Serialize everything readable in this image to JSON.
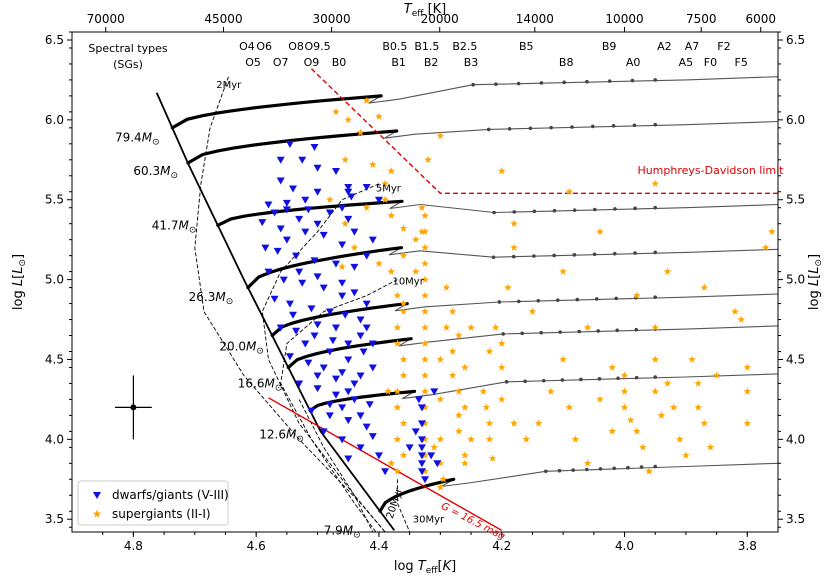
{
  "chart_data": {
    "type": "scatter",
    "title": "",
    "xlabel": "log T_eff[K]",
    "xlabel_top": "T_eff [K]",
    "ylabel": "log L[L_⊙]",
    "xlim": [
      4.9,
      3.75
    ],
    "ylim": [
      3.42,
      6.55
    ],
    "x_ticks": [
      {
        "v": 4.8,
        "label": "4.8"
      },
      {
        "v": 4.6,
        "label": "4.6"
      },
      {
        "v": 4.4,
        "label": "4.4"
      },
      {
        "v": 4.2,
        "label": "4.2"
      },
      {
        "v": 4.0,
        "label": "4.0"
      },
      {
        "v": 3.8,
        "label": "3.8"
      }
    ],
    "y_ticks": [
      {
        "v": 3.5,
        "label": "3.5"
      },
      {
        "v": 4.0,
        "label": "4.0"
      },
      {
        "v": 4.5,
        "label": "4.5"
      },
      {
        "v": 5.0,
        "label": "5.0"
      },
      {
        "v": 5.5,
        "label": "5.5"
      },
      {
        "v": 6.0,
        "label": "6.0"
      },
      {
        "v": 6.5,
        "label": "6.5"
      }
    ],
    "top_ticks": [
      {
        "teff": 70000,
        "label": "70000"
      },
      {
        "teff": 45000,
        "label": "45000"
      },
      {
        "teff": 30000,
        "label": "30000"
      },
      {
        "teff": 20000,
        "label": "20000"
      },
      {
        "teff": 14000,
        "label": "14000"
      },
      {
        "teff": 10000,
        "label": "10000"
      },
      {
        "teff": 7500,
        "label": "7500"
      },
      {
        "teff": 6000,
        "label": "6000"
      }
    ],
    "spectral_types_header": [
      "Spectral types",
      "(SGs)"
    ],
    "spectral_types_row1": [
      {
        "label": "O4",
        "x": 4.615
      },
      {
        "label": "O6",
        "x": 4.587
      },
      {
        "label": "O8",
        "x": 4.535
      },
      {
        "label": "O9.5",
        "x": 4.5
      },
      {
        "label": "B0.5",
        "x": 4.374
      },
      {
        "label": "B1.5",
        "x": 4.322
      },
      {
        "label": "B2.5",
        "x": 4.26
      },
      {
        "label": "B5",
        "x": 4.16
      },
      {
        "label": "B9",
        "x": 4.025
      },
      {
        "label": "A2",
        "x": 3.935
      },
      {
        "label": "A7",
        "x": 3.89
      },
      {
        "label": "F2",
        "x": 3.838
      }
    ],
    "spectral_types_row2": [
      {
        "label": "O5",
        "x": 4.605
      },
      {
        "label": "O7",
        "x": 4.56
      },
      {
        "label": "O9",
        "x": 4.51
      },
      {
        "label": "B0",
        "x": 4.465
      },
      {
        "label": "B1",
        "x": 4.368
      },
      {
        "label": "B2",
        "x": 4.315
      },
      {
        "label": "B3",
        "x": 4.25
      },
      {
        "label": "B8",
        "x": 4.095
      },
      {
        "label": "A0",
        "x": 3.986
      },
      {
        "label": "A5",
        "x": 3.9
      },
      {
        "label": "F0",
        "x": 3.86
      },
      {
        "label": "F5",
        "x": 3.81
      }
    ],
    "zams": [
      [
        4.762,
        6.17
      ],
      [
        4.71,
        5.72
      ],
      [
        4.62,
        5.0
      ],
      [
        4.545,
        4.43
      ],
      [
        4.495,
        4.05
      ],
      [
        4.375,
        3.43
      ]
    ],
    "tracks": [
      {
        "mass_label": "79.4M",
        "label_x": 4.83,
        "label_y": 5.89,
        "y0": 5.95,
        "span": 0.34,
        "sl": 0.2,
        "lum_end": 6.27
      },
      {
        "mass_label": "60.3M",
        "label_x": 4.8,
        "label_y": 5.68,
        "y0": 5.73,
        "span": 0.34,
        "sl": 0.2,
        "lum_end": 5.99
      },
      {
        "mass_label": "41.7M",
        "label_x": 4.77,
        "label_y": 5.34,
        "y0": 5.34,
        "span": 0.3,
        "sl": 0.15,
        "lum_end": 5.47
      },
      {
        "mass_label": "26.3M",
        "label_x": 4.71,
        "label_y": 4.89,
        "y0": 4.95,
        "span": 0.25,
        "sl": 0.25,
        "lum_end": 5.19
      },
      {
        "mass_label": "20.0M",
        "label_x": 4.66,
        "label_y": 4.58,
        "y0": 4.65,
        "span": 0.22,
        "sl": 0.2,
        "lum_end": 4.91
      },
      {
        "mass_label": "16.6M",
        "label_x": 4.63,
        "label_y": 4.35,
        "y0": 4.45,
        "span": 0.2,
        "sl": 0.18,
        "lum_end": 4.71
      },
      {
        "mass_label": "12.6M",
        "label_x": 4.595,
        "label_y": 4.03,
        "y0": 4.18,
        "span": 0.17,
        "sl": 0.12,
        "lum_end": 4.41
      },
      {
        "mass_label": "7.9M",
        "label_x": 4.49,
        "label_y": 3.43,
        "y0": 3.55,
        "span": 0.12,
        "sl": 0.2,
        "lum_end": 3.85
      }
    ],
    "isochrones": [
      {
        "label": "2Myr",
        "x": 4.665,
        "y": 6.2,
        "pts": [
          [
            4.645,
            6.27
          ],
          [
            4.675,
            5.95
          ],
          [
            4.69,
            5.6
          ],
          [
            4.7,
            5.2
          ],
          [
            4.685,
            4.8
          ],
          [
            4.62,
            4.4
          ],
          [
            4.53,
            4.0
          ],
          [
            4.43,
            3.6
          ],
          [
            4.39,
            3.42
          ]
        ]
      },
      {
        "label": "5Myr",
        "x": 4.405,
        "y": 5.55,
        "pts": [
          [
            4.4,
            5.6
          ],
          [
            4.46,
            5.5
          ],
          [
            4.5,
            5.3
          ],
          [
            4.56,
            5.05
          ],
          [
            4.59,
            4.8
          ],
          [
            4.58,
            4.5
          ],
          [
            4.53,
            4.1
          ],
          [
            4.44,
            3.65
          ],
          [
            4.39,
            3.42
          ]
        ]
      },
      {
        "label": "10Myr",
        "x": 4.378,
        "y": 4.97,
        "pts": [
          [
            4.37,
            5.0
          ],
          [
            4.42,
            4.9
          ],
          [
            4.49,
            4.8
          ],
          [
            4.55,
            4.6
          ],
          [
            4.56,
            4.35
          ],
          [
            4.51,
            4.0
          ],
          [
            4.44,
            3.6
          ],
          [
            4.405,
            3.42
          ]
        ]
      },
      {
        "label": "20Myr",
        "x": 4.378,
        "y": 3.5,
        "pts": [
          [
            4.53,
            4.25
          ],
          [
            4.49,
            3.95
          ],
          [
            4.44,
            3.65
          ],
          [
            4.41,
            3.42
          ]
        ]
      },
      {
        "label": "30Myr",
        "x": 4.345,
        "y": 3.48,
        "pts": [
          [
            4.37,
            3.75
          ],
          [
            4.37,
            3.6
          ],
          [
            4.35,
            3.42
          ]
        ]
      }
    ],
    "hd_limit": {
      "label": "Humphreys-Davidson limit",
      "pts": [
        [
          4.51,
          6.32
        ],
        [
          4.3,
          5.54
        ],
        [
          3.75,
          5.54
        ]
      ]
    },
    "g_limit": {
      "label": "G = 16.5 mag",
      "pts": [
        [
          4.58,
          4.26
        ],
        [
          4.2,
          3.43
        ]
      ]
    },
    "error_bar": {
      "x": 4.8,
      "y": 4.2,
      "xerr": 0.03,
      "yerr": 0.2
    },
    "series": [
      {
        "name": "dwarfs/giants (V-III)",
        "color": "#1010e0",
        "marker": "triangle-down"
      },
      {
        "name": "supergiants (II-I)",
        "color": "#ffa500",
        "marker": "star"
      }
    ],
    "dwarfs": [
      [
        4.505,
        5.83
      ],
      [
        4.545,
        5.85
      ],
      [
        4.56,
        5.75
      ],
      [
        4.525,
        5.75
      ],
      [
        4.5,
        5.7
      ],
      [
        4.47,
        5.68
      ],
      [
        4.45,
        5.58
      ],
      [
        4.56,
        5.62
      ],
      [
        4.54,
        5.57
      ],
      [
        4.5,
        5.55
      ],
      [
        4.445,
        5.52
      ],
      [
        4.42,
        5.58
      ],
      [
        4.4,
        5.5
      ],
      [
        4.58,
        5.47
      ],
      [
        4.55,
        5.44
      ],
      [
        4.515,
        5.44
      ],
      [
        4.48,
        5.42
      ],
      [
        4.45,
        5.38
      ],
      [
        4.59,
        5.36
      ],
      [
        4.56,
        5.32
      ],
      [
        4.52,
        5.3
      ],
      [
        4.49,
        5.28
      ],
      [
        4.44,
        5.3
      ],
      [
        4.41,
        5.25
      ],
      [
        4.585,
        5.2
      ],
      [
        4.565,
        5.18
      ],
      [
        4.535,
        5.15
      ],
      [
        4.505,
        5.12
      ],
      [
        4.47,
        5.1
      ],
      [
        4.44,
        5.08
      ],
      [
        4.42,
        5.15
      ],
      [
        4.58,
        5.05
      ],
      [
        4.555,
        5.0
      ],
      [
        4.525,
        4.98
      ],
      [
        4.49,
        4.95
      ],
      [
        4.46,
        4.98
      ],
      [
        4.44,
        4.92
      ],
      [
        4.42,
        4.85
      ],
      [
        4.57,
        4.88
      ],
      [
        4.545,
        4.85
      ],
      [
        4.51,
        4.82
      ],
      [
        4.48,
        4.8
      ],
      [
        4.455,
        4.78
      ],
      [
        4.43,
        4.75
      ],
      [
        4.56,
        4.7
      ],
      [
        4.535,
        4.68
      ],
      [
        4.505,
        4.65
      ],
      [
        4.475,
        4.62
      ],
      [
        4.45,
        4.6
      ],
      [
        4.425,
        4.55
      ],
      [
        4.545,
        4.52
      ],
      [
        4.515,
        4.48
      ],
      [
        4.49,
        4.45
      ],
      [
        4.46,
        4.42
      ],
      [
        4.43,
        4.4
      ],
      [
        4.41,
        4.45
      ],
      [
        4.53,
        4.35
      ],
      [
        4.5,
        4.32
      ],
      [
        4.47,
        4.28
      ],
      [
        4.44,
        4.25
      ],
      [
        4.415,
        4.22
      ],
      [
        4.51,
        4.18
      ],
      [
        4.48,
        4.15
      ],
      [
        4.45,
        4.12
      ],
      [
        4.42,
        4.08
      ],
      [
        4.49,
        4.05
      ],
      [
        4.46,
        4.0
      ],
      [
        4.43,
        3.95
      ],
      [
        4.41,
        4.02
      ],
      [
        4.45,
        3.88
      ],
      [
        4.4,
        3.9
      ],
      [
        4.39,
        3.8
      ],
      [
        4.33,
        4.2
      ],
      [
        4.33,
        4.1
      ],
      [
        4.33,
        4.0
      ],
      [
        4.33,
        3.95
      ],
      [
        4.33,
        3.9
      ],
      [
        4.33,
        3.85
      ],
      [
        4.33,
        3.8
      ],
      [
        4.325,
        3.75
      ],
      [
        4.335,
        4.25
      ],
      [
        4.34,
        4.05
      ],
      [
        4.35,
        3.95
      ],
      [
        4.315,
        3.9
      ],
      [
        4.31,
        4.3
      ],
      [
        4.305,
        3.85
      ],
      [
        4.45,
        5.55
      ],
      [
        4.52,
        5.5
      ],
      [
        4.55,
        5.48
      ],
      [
        4.46,
        5.45
      ],
      [
        4.53,
        5.38
      ],
      [
        4.57,
        5.42
      ],
      [
        4.5,
        5.35
      ],
      [
        4.46,
        5.22
      ],
      [
        4.55,
        5.25
      ],
      [
        4.53,
        5.05
      ],
      [
        4.5,
        5.02
      ],
      [
        4.46,
        4.9
      ],
      [
        4.54,
        4.78
      ],
      [
        4.5,
        4.72
      ],
      [
        4.47,
        4.7
      ],
      [
        4.52,
        4.6
      ],
      [
        4.48,
        4.55
      ],
      [
        4.45,
        4.5
      ],
      [
        4.5,
        4.4
      ],
      [
        4.47,
        4.38
      ],
      [
        4.45,
        4.3
      ],
      [
        4.48,
        4.22
      ],
      [
        4.46,
        4.2
      ],
      [
        4.43,
        4.15
      ],
      [
        4.44,
        4.35
      ],
      [
        4.43,
        4.65
      ],
      [
        4.42,
        4.7
      ],
      [
        4.41,
        4.6
      ]
    ],
    "supergiants": [
      [
        4.47,
        6.05
      ],
      [
        4.43,
        5.92
      ],
      [
        4.42,
        6.12
      ],
      [
        4.455,
        5.75
      ],
      [
        4.41,
        5.72
      ],
      [
        4.38,
        5.68
      ],
      [
        4.48,
        5.5
      ],
      [
        4.455,
        5.35
      ],
      [
        4.42,
        5.45
      ],
      [
        4.39,
        5.5
      ],
      [
        4.38,
        5.4
      ],
      [
        4.36,
        5.32
      ],
      [
        4.34,
        5.25
      ],
      [
        4.4,
        5.1
      ],
      [
        4.38,
        5.05
      ],
      [
        4.37,
        4.9
      ],
      [
        4.36,
        4.85
      ],
      [
        4.37,
        4.6
      ],
      [
        4.36,
        4.5
      ],
      [
        4.385,
        4.3
      ],
      [
        4.37,
        4.2
      ],
      [
        4.36,
        4.1
      ],
      [
        4.37,
        4.0
      ],
      [
        4.36,
        3.9
      ],
      [
        4.38,
        3.85
      ],
      [
        4.37,
        3.8
      ],
      [
        4.325,
        5.4
      ],
      [
        4.325,
        5.3
      ],
      [
        4.325,
        5.2
      ],
      [
        4.325,
        5.1
      ],
      [
        4.325,
        5.0
      ],
      [
        4.325,
        4.9
      ],
      [
        4.325,
        4.8
      ],
      [
        4.325,
        4.7
      ],
      [
        4.325,
        4.6
      ],
      [
        4.325,
        4.5
      ],
      [
        4.325,
        4.4
      ],
      [
        4.325,
        4.3
      ],
      [
        4.325,
        4.2
      ],
      [
        4.325,
        4.1
      ],
      [
        4.325,
        4.0
      ],
      [
        4.325,
        3.9
      ],
      [
        4.325,
        3.8
      ],
      [
        4.31,
        3.95
      ],
      [
        4.3,
        3.85
      ],
      [
        4.295,
        3.75
      ],
      [
        4.3,
        3.7
      ],
      [
        4.3,
        4.5
      ],
      [
        4.28,
        4.4
      ],
      [
        4.27,
        4.3
      ],
      [
        4.26,
        4.2
      ],
      [
        4.27,
        4.05
      ],
      [
        4.26,
        3.9
      ],
      [
        4.26,
        3.85
      ],
      [
        4.29,
        4.7
      ],
      [
        4.28,
        4.8
      ],
      [
        4.23,
        4.3
      ],
      [
        4.225,
        4.2
      ],
      [
        4.22,
        4.1
      ],
      [
        4.22,
        4.0
      ],
      [
        4.215,
        3.88
      ],
      [
        4.18,
        5.35
      ],
      [
        4.18,
        5.2
      ],
      [
        4.19,
        4.95
      ],
      [
        4.2,
        4.6
      ],
      [
        4.2,
        4.45
      ],
      [
        4.2,
        4.25
      ],
      [
        4.18,
        4.1
      ],
      [
        4.16,
        4.0
      ],
      [
        4.14,
        4.1
      ],
      [
        4.12,
        4.3
      ],
      [
        4.1,
        4.5
      ],
      [
        4.09,
        4.2
      ],
      [
        4.08,
        4.0
      ],
      [
        4.06,
        3.85
      ],
      [
        4.04,
        4.25
      ],
      [
        4.02,
        4.05
      ],
      [
        4.0,
        4.4
      ],
      [
        4.0,
        4.3
      ],
      [
        4.0,
        4.2
      ],
      [
        3.99,
        4.12
      ],
      [
        3.98,
        4.05
      ],
      [
        3.97,
        3.95
      ],
      [
        3.96,
        3.8
      ],
      [
        3.95,
        4.7
      ],
      [
        3.95,
        4.5
      ],
      [
        3.95,
        4.3
      ],
      [
        3.94,
        4.15
      ],
      [
        3.93,
        4.35
      ],
      [
        3.92,
        4.2
      ],
      [
        3.91,
        4.0
      ],
      [
        3.9,
        3.9
      ],
      [
        3.89,
        4.5
      ],
      [
        3.88,
        4.35
      ],
      [
        3.88,
        4.2
      ],
      [
        3.87,
        4.1
      ],
      [
        3.86,
        3.95
      ],
      [
        3.85,
        4.4
      ],
      [
        3.82,
        4.8
      ],
      [
        3.81,
        4.75
      ],
      [
        3.8,
        4.45
      ],
      [
        3.8,
        4.3
      ],
      [
        3.8,
        4.1
      ],
      [
        3.77,
        5.2
      ],
      [
        3.76,
        5.3
      ],
      [
        4.02,
        4.45
      ],
      [
        4.06,
        4.7
      ],
      [
        4.1,
        5.05
      ],
      [
        4.15,
        4.8
      ],
      [
        3.98,
        4.9
      ],
      [
        3.93,
        5.05
      ],
      [
        3.87,
        4.95
      ],
      [
        4.04,
        5.3
      ],
      [
        3.95,
        5.6
      ],
      [
        4.09,
        5.55
      ],
      [
        4.2,
        5.68
      ],
      [
        4.34,
        5.05
      ],
      [
        4.33,
        5.45
      ],
      [
        4.29,
        4.95
      ],
      [
        4.27,
        4.65
      ],
      [
        4.25,
        4.7
      ],
      [
        4.33,
        5.3
      ],
      [
        4.37,
        4.3
      ],
      [
        4.36,
        4.4
      ],
      [
        4.37,
        4.7
      ],
      [
        4.36,
        4.8
      ],
      [
        4.39,
        5.6
      ],
      [
        4.36,
        5.15
      ],
      [
        4.32,
        5.75
      ],
      [
        4.3,
        5.9
      ],
      [
        4.45,
        6.0
      ],
      [
        4.4,
        6.02
      ],
      [
        4.44,
        5.2
      ],
      [
        4.46,
        5.08
      ],
      [
        4.3,
        4.0
      ],
      [
        4.3,
        4.25
      ],
      [
        4.28,
        4.55
      ],
      [
        4.27,
        4.15
      ],
      [
        4.26,
        4.45
      ],
      [
        4.25,
        4.0
      ],
      [
        4.22,
        4.55
      ],
      [
        4.21,
        4.7
      ]
    ],
    "legend": {
      "position": "lower-left"
    }
  }
}
